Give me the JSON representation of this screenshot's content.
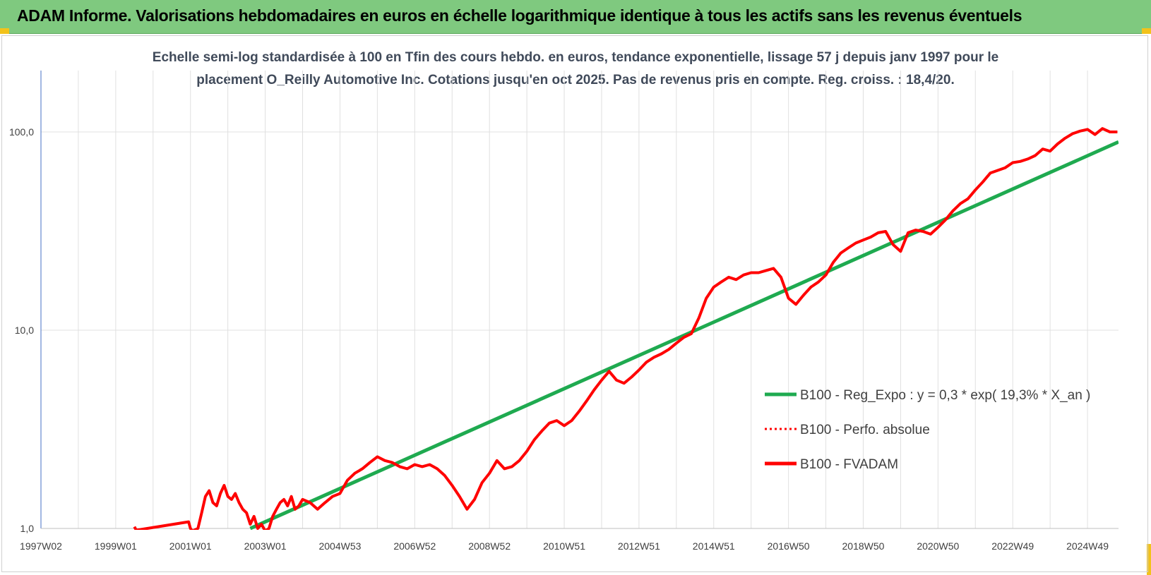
{
  "page": {
    "title": "ADAM Informe. Valorisations hebdomadaires en euros en échelle logarithmique identique à tous les actifs sans les revenus éventuels"
  },
  "colors": {
    "title_bar": "#7fc97f",
    "series_red": "#ff0000",
    "series_green": "#1faa50",
    "grid": "#e0e0e0",
    "corner_accent": "#f2c21b"
  },
  "chart_data": {
    "type": "line",
    "title_line1": "Echelle semi-log standardisée à 100 en Tfin des cours hebdo. en euros, tendance exponentielle, lissage 57 j depuis janv 1997 pour le",
    "title_line2": "placement O_Reilly Automotive Inc. Cotations jusqu'en oct 2025. Pas de revenus pris en compte. Reg. croiss. : 18,4/20.",
    "y_scale": "log",
    "ylim": [
      1,
      200
    ],
    "xlim": [
      1997.0,
      2025.83
    ],
    "y_tick_labels": [
      "1,0",
      "10,0",
      "100,0"
    ],
    "y_tick_values": [
      1,
      10,
      100
    ],
    "x_tick_labels": [
      "1997W02",
      "1999W01",
      "2001W01",
      "2003W01",
      "2004W53",
      "2006W52",
      "2008W52",
      "2010W51",
      "2012W51",
      "2014W51",
      "2016W50",
      "2018W50",
      "2020W50",
      "2022W49",
      "2024W49"
    ],
    "x_tick_values": [
      1997.0,
      1999.0,
      2001.0,
      2003.0,
      2005.0,
      2007.0,
      2009.0,
      2011.0,
      2013.0,
      2015.0,
      2017.0,
      2019.0,
      2021.0,
      2023.0,
      2025.0
    ],
    "grid": true,
    "legend_position": "right",
    "series": [
      {
        "name": "B100 - Reg_Expo : y = 0,3 * exp( 19,3% *  X_an )",
        "style": "solid",
        "color": "#1faa50",
        "x": [
          2002.6,
          2025.83
        ],
        "y": [
          1.0,
          89
        ]
      },
      {
        "name": "B100 - Perfo. absolue",
        "style": "dotted",
        "color": "#ff0000",
        "x": [],
        "y": []
      },
      {
        "name": "B100 - FVADAM",
        "style": "solid",
        "color": "#ff0000",
        "x": [
          1999.5,
          1999.55,
          2000.95,
          2001.0,
          2001.05,
          2001.2,
          2001.3,
          2001.4,
          2001.5,
          2001.6,
          2001.7,
          2001.8,
          2001.9,
          2002.0,
          2002.1,
          2002.2,
          2002.3,
          2002.4,
          2002.5,
          2002.6,
          2002.7,
          2002.8,
          2002.9,
          2003.0,
          2003.1,
          2003.2,
          2003.3,
          2003.4,
          2003.5,
          2003.6,
          2003.7,
          2003.8,
          2003.9,
          2004.0,
          2004.2,
          2004.4,
          2004.6,
          2004.8,
          2005.0,
          2005.2,
          2005.4,
          2005.6,
          2005.8,
          2006.0,
          2006.2,
          2006.4,
          2006.6,
          2006.8,
          2007.0,
          2007.2,
          2007.4,
          2007.6,
          2007.8,
          2008.0,
          2008.2,
          2008.4,
          2008.6,
          2008.8,
          2009.0,
          2009.2,
          2009.4,
          2009.6,
          2009.8,
          2010.0,
          2010.2,
          2010.4,
          2010.6,
          2010.8,
          2011.0,
          2011.2,
          2011.4,
          2011.6,
          2011.8,
          2012.0,
          2012.2,
          2012.4,
          2012.6,
          2012.8,
          2013.0,
          2013.2,
          2013.4,
          2013.6,
          2013.8,
          2014.0,
          2014.2,
          2014.4,
          2014.6,
          2014.8,
          2015.0,
          2015.2,
          2015.4,
          2015.6,
          2015.8,
          2016.0,
          2016.2,
          2016.4,
          2016.6,
          2016.8,
          2017.0,
          2017.2,
          2017.4,
          2017.6,
          2017.8,
          2018.0,
          2018.2,
          2018.4,
          2018.6,
          2018.8,
          2019.0,
          2019.2,
          2019.4,
          2019.6,
          2019.8,
          2020.0,
          2020.2,
          2020.4,
          2020.6,
          2020.8,
          2021.0,
          2021.2,
          2021.4,
          2021.6,
          2021.8,
          2022.0,
          2022.2,
          2022.4,
          2022.6,
          2022.8,
          2023.0,
          2023.2,
          2023.4,
          2023.6,
          2023.8,
          2024.0,
          2024.2,
          2024.4,
          2024.6,
          2024.8,
          2025.0,
          2025.2,
          2025.4,
          2025.6,
          2025.8
        ],
        "y": [
          1.02,
          0.98,
          1.08,
          1.0,
          0.97,
          1.0,
          1.2,
          1.45,
          1.55,
          1.35,
          1.3,
          1.5,
          1.65,
          1.45,
          1.4,
          1.5,
          1.35,
          1.25,
          1.2,
          1.05,
          1.15,
          1.0,
          1.05,
          0.97,
          1.0,
          1.15,
          1.25,
          1.35,
          1.4,
          1.3,
          1.45,
          1.25,
          1.3,
          1.4,
          1.35,
          1.25,
          1.35,
          1.45,
          1.5,
          1.75,
          1.9,
          2.0,
          2.15,
          2.3,
          2.2,
          2.15,
          2.05,
          2.0,
          2.1,
          2.05,
          2.1,
          2.0,
          1.85,
          1.65,
          1.45,
          1.25,
          1.4,
          1.7,
          1.9,
          2.2,
          2.0,
          2.05,
          2.2,
          2.45,
          2.8,
          3.1,
          3.4,
          3.5,
          3.3,
          3.5,
          3.9,
          4.4,
          5.0,
          5.6,
          6.2,
          5.6,
          5.4,
          5.8,
          6.3,
          6.9,
          7.3,
          7.6,
          8.0,
          8.6,
          9.2,
          9.6,
          11.5,
          14.5,
          16.5,
          17.5,
          18.5,
          18.0,
          19.0,
          19.5,
          19.5,
          20.0,
          20.5,
          18.5,
          14.5,
          13.5,
          15.0,
          16.5,
          17.5,
          19.0,
          22.0,
          24.5,
          26.0,
          27.5,
          28.5,
          29.5,
          31.0,
          31.5,
          27.0,
          25.0,
          31.0,
          32.0,
          31.5,
          30.5,
          33.0,
          36.0,
          40.0,
          43.5,
          46.0,
          51.0,
          56.0,
          62.0,
          64.0,
          66.0,
          70.0,
          71.0,
          73.0,
          76.0,
          82.0,
          80.0,
          87.0,
          93.0,
          98.0,
          101.0,
          103.0,
          97.0,
          104.0,
          100.0,
          100.0
        ]
      }
    ]
  },
  "legend": {
    "items": [
      "B100 - Reg_Expo : y = 0,3 * exp( 19,3% *  X_an )",
      "B100 - Perfo. absolue",
      "B100 - FVADAM"
    ]
  }
}
